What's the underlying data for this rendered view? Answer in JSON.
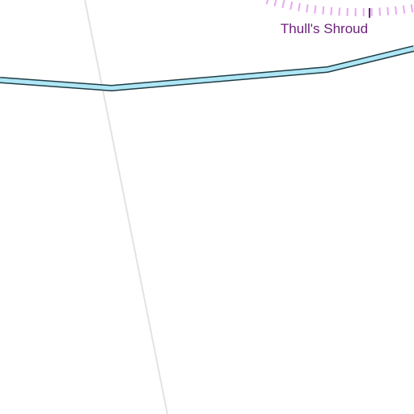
{
  "map": {
    "labels": {
      "poi": "Thull's Shroud"
    },
    "colors": {
      "background": "#ffffff",
      "river_fill": "#aee6f5",
      "river_outline": "#1f3d45",
      "path_line": "#e3e3e3",
      "boundary_dashes": "#e6a8f0",
      "label_text": "#6b1f7a",
      "marker": "#6b1f7a"
    },
    "features": [
      {
        "name": "river",
        "kind": "waterway"
      },
      {
        "name": "path",
        "kind": "trail"
      },
      {
        "name": "shroud-boundary",
        "kind": "area-boundary",
        "style": "dashed"
      },
      {
        "name": "shroud-marker",
        "kind": "poi-marker"
      }
    ]
  }
}
